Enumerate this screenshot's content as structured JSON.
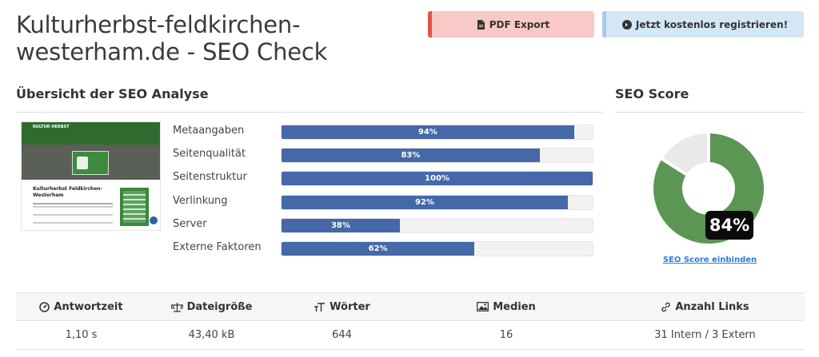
{
  "header": {
    "title": "Kulturherbst-feldkirchen-westerham.de - SEO Check",
    "pdf_label": "PDF Export",
    "register_label": "Jetzt kostenlos registrieren!"
  },
  "analysis": {
    "heading": "Übersicht der SEO Analyse",
    "thumbnail": {
      "logo_text": "KULTUR HERBST",
      "page_title": "Kulturherbst Feldkirchen-Westerham"
    },
    "metrics": [
      {
        "label": "Metaangaben",
        "value": 94,
        "text": "94%"
      },
      {
        "label": "Seitenqualität",
        "value": 83,
        "text": "83%"
      },
      {
        "label": "Seitenstruktur",
        "value": 100,
        "text": "100%"
      },
      {
        "label": "Verlinkung",
        "value": 92,
        "text": "92%"
      },
      {
        "label": "Server",
        "value": 38,
        "text": "38%"
      },
      {
        "label": "Externe Faktoren",
        "value": 62,
        "text": "62%"
      }
    ],
    "bar_color": "#4468a8"
  },
  "score": {
    "heading": "SEO Score",
    "value": 84,
    "text": "84%",
    "embed_label": "SEO Score einbinden",
    "color_filled": "#5b9654",
    "color_empty": "#e9e9e9"
  },
  "stats": {
    "headers": [
      {
        "label": "Antwortzeit",
        "icon": "gauge-icon"
      },
      {
        "label": "Dateigröße",
        "icon": "scale-icon"
      },
      {
        "label": "Wörter",
        "icon": "text-size-icon"
      },
      {
        "label": "Medien",
        "icon": "image-icon"
      },
      {
        "label": "Anzahl Links",
        "icon": "link-icon"
      }
    ],
    "values": [
      "1,10 s",
      "43,40 kB",
      "644",
      "16",
      "31 Intern / 3 Extern"
    ]
  }
}
